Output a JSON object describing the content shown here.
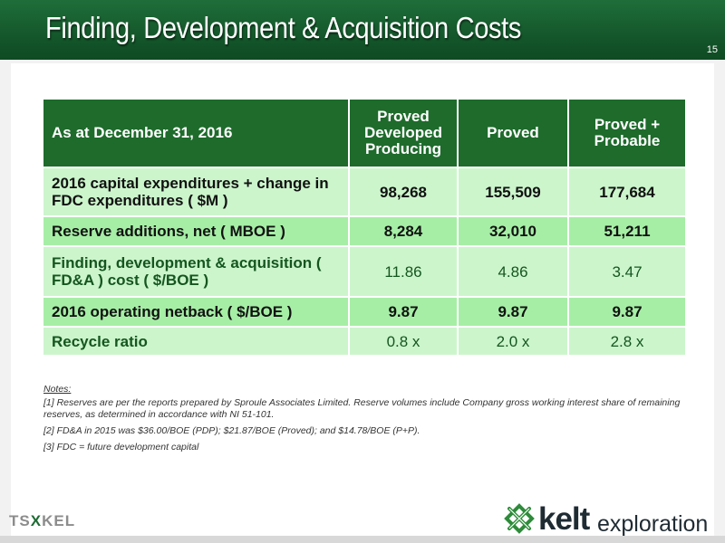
{
  "slide": {
    "title": "Finding, Development & Acquisition Costs",
    "page_number": "15"
  },
  "table": {
    "headers": [
      "As at December 31, 2016",
      "Proved Developed Producing",
      "Proved",
      "Proved + Probable"
    ],
    "rows": [
      {
        "label": "2016 capital expenditures + change in FDC expenditures ( $M )",
        "values": [
          "98,268",
          "155,509",
          "177,684"
        ]
      },
      {
        "label": "Reserve additions, net ( MBOE )",
        "values": [
          "8,284",
          "32,010",
          "51,211"
        ]
      },
      {
        "label": "Finding, development & acquisition ( FD&A ) cost ( $/BOE )",
        "values": [
          "11.86",
          "4.86",
          "3.47"
        ]
      },
      {
        "label": "2016 operating netback ( $/BOE )",
        "values": [
          "9.87",
          "9.87",
          "9.87"
        ]
      },
      {
        "label": "Recycle ratio",
        "values": [
          "0.8 x",
          "2.0 x",
          "2.8 x"
        ]
      }
    ]
  },
  "notes": {
    "title": "Notes:",
    "items": [
      "[1] Reserves are per the reports prepared by Sproule Associates Limited. Reserve volumes include Company gross working interest share of remaining reserves, as determined in accordance with NI 51-101.",
      "[2] FD&A in 2015 was $36.00/BOE (PDP); $21.87/BOE (Proved); and $14.78/BOE (P+P).",
      "[3] FDC = future development capital"
    ]
  },
  "footer": {
    "exchange_logo_left": "TS",
    "exchange_logo_x": "X",
    "exchange_logo_right": "KEL",
    "company_logo_bold": "kelt",
    "company_logo_sub": "exploration"
  },
  "colors": {
    "header_green": "#15592c",
    "table_header": "#1e6b2c",
    "row_light": "#ccf5cc",
    "row_medium": "#a6eea6",
    "accent_text_green": "#15561f"
  },
  "icons": {
    "company_logo": "celtic-knot-icon"
  }
}
